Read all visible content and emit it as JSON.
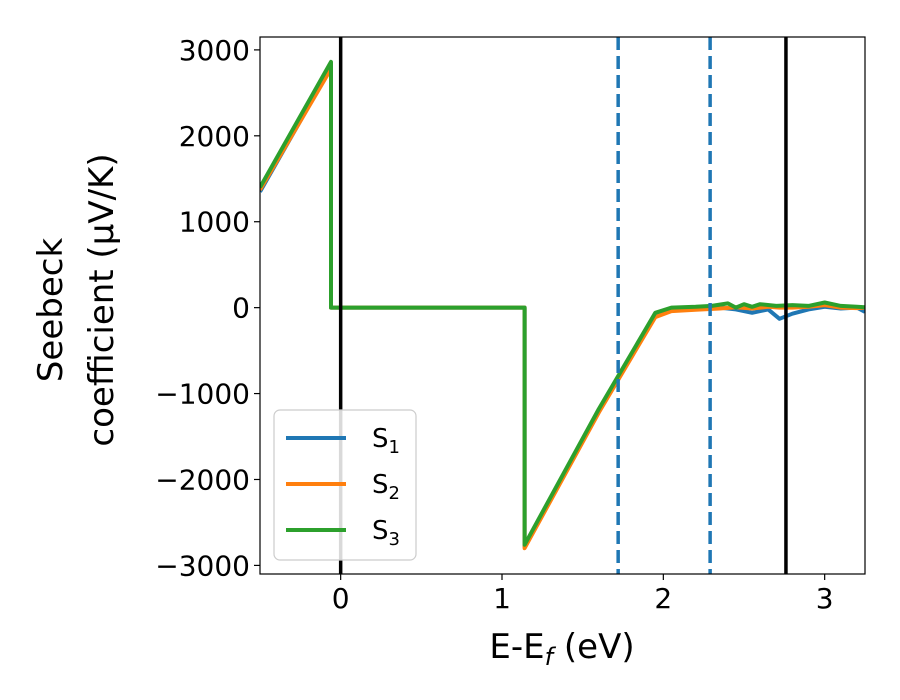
{
  "chart_data": {
    "type": "line",
    "xlabel": "E-E",
    "xlabel_sub": "f",
    "xlabel_unit": " (eV)",
    "ylabel_line1": "Seebeck",
    "ylabel_line2": "coefficient  (μV/K)",
    "xlim": [
      -0.5,
      3.25
    ],
    "ylim": [
      -3100,
      3150
    ],
    "xticks": [
      0,
      1,
      2,
      3
    ],
    "xtick_labels": [
      "0",
      "1",
      "2",
      "3"
    ],
    "yticks": [
      -3000,
      -2000,
      -1000,
      0,
      1000,
      2000,
      3000
    ],
    "ytick_labels": [
      "−3000",
      "−2000",
      "−1000",
      "0",
      "1000",
      "2000",
      "3000"
    ],
    "grid": false,
    "legend_position": "lower-left",
    "vlines": [
      {
        "x": 0.0,
        "style": "solid",
        "color": "#000000"
      },
      {
        "x": 1.72,
        "style": "dashed",
        "color": "#1f77b4"
      },
      {
        "x": 2.29,
        "style": "dashed",
        "color": "#1f77b4"
      },
      {
        "x": 2.76,
        "style": "solid",
        "color": "#000000"
      }
    ],
    "series": [
      {
        "name": "S",
        "sub": "1",
        "color": "#1f77b4",
        "x": [
          -0.5,
          -0.06,
          -0.06,
          1.14,
          1.14,
          1.6,
          1.95,
          2.05,
          2.2,
          2.35,
          2.45,
          2.55,
          2.65,
          2.72,
          2.8,
          2.9,
          3.0,
          3.1,
          3.2,
          3.25
        ],
        "y": [
          1350,
          2800,
          0,
          0,
          -2780,
          -1200,
          -90,
          -30,
          -15,
          0,
          -20,
          -60,
          -20,
          -130,
          -70,
          -20,
          10,
          -10,
          0,
          -50
        ]
      },
      {
        "name": "S",
        "sub": "2",
        "color": "#ff7f0e",
        "x": [
          -0.5,
          -0.06,
          -0.06,
          1.14,
          1.14,
          1.6,
          1.95,
          2.05,
          2.2,
          2.35,
          2.45,
          2.55,
          2.65,
          2.72,
          2.8,
          2.9,
          3.0,
          3.1,
          3.2,
          3.25
        ],
        "y": [
          1370,
          2780,
          0,
          0,
          -2800,
          -1220,
          -110,
          -40,
          -25,
          -10,
          5,
          -10,
          10,
          0,
          0,
          10,
          30,
          0,
          -5,
          0
        ]
      },
      {
        "name": "S",
        "sub": "3",
        "color": "#2ca02c",
        "x": [
          -0.5,
          -0.06,
          -0.06,
          1.14,
          1.14,
          1.6,
          1.95,
          2.05,
          2.2,
          2.3,
          2.4,
          2.45,
          2.5,
          2.55,
          2.6,
          2.7,
          2.8,
          2.9,
          3.0,
          3.1,
          3.2,
          3.25
        ],
        "y": [
          1400,
          2860,
          0,
          0,
          -2760,
          -1180,
          -60,
          0,
          10,
          20,
          50,
          0,
          40,
          10,
          40,
          20,
          30,
          20,
          60,
          20,
          10,
          5
        ]
      }
    ]
  }
}
